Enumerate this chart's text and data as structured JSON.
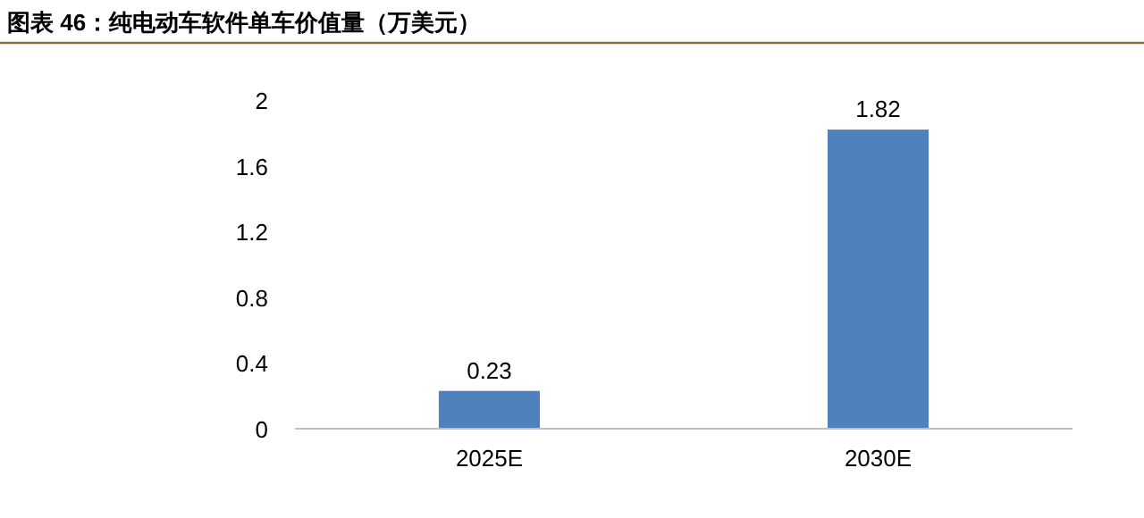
{
  "chart_data": {
    "type": "bar",
    "title": "图表 46：纯电动车软件单车价值量（万美元）",
    "categories": [
      "2025E",
      "2030E"
    ],
    "values": [
      0.23,
      1.82
    ],
    "color": "#4f81bd",
    "ylim": [
      0,
      2
    ],
    "yticks": [
      0,
      0.4,
      0.8,
      1.2,
      1.6,
      2
    ],
    "data_labels": true,
    "grid": false
  }
}
